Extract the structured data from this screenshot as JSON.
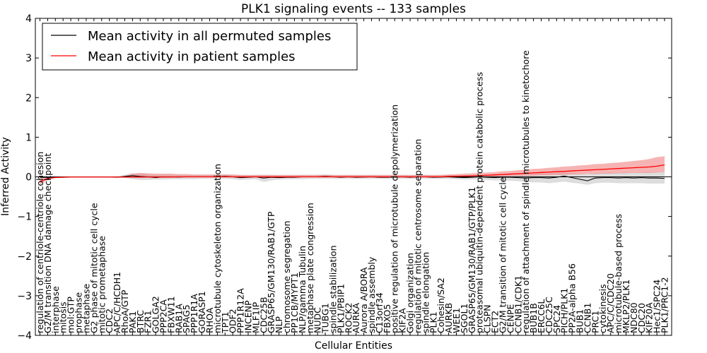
{
  "chart_data": {
    "type": "line",
    "title": "PLK1 signaling events -- 133 samples",
    "xlabel": "Cellular Entities",
    "ylabel": "Inferred Activity",
    "ylim": [
      -4,
      4
    ],
    "yticks": [
      4,
      3,
      2,
      1,
      0,
      -1,
      -2,
      -3,
      -4
    ],
    "ytick_labels": [
      "4",
      "3",
      "2",
      "1",
      "0",
      "−1",
      "−2",
      "−3",
      "−4"
    ],
    "legend_position": "upper-left",
    "categories": [
      "regulation of centriole-centriole cohesion",
      "G2/M transition DNA damage checkpoint",
      "interphase",
      "mitosis",
      "mol:GTP",
      "prophase",
      "metaphase",
      "G2 phase of mitotic cell cycle",
      "mitotic prometaphase",
      "CDC2",
      "APC/C/HCDH1",
      "RhoA/GTP",
      "PAK1",
      "BTRC",
      "FZR1",
      "GOLGA2",
      "PPP2CA",
      "FBXW11",
      "RAB1A",
      "SPAG5",
      "PPP1R1A",
      "GORASP1",
      "RHOA",
      "microtubule cytoskeleton organization",
      "TPT1",
      "ODF2",
      "PPP1R12A",
      "INCENP",
      "MLF1IP",
      "CDC25B",
      "GRASP65/GM130/RAB1/GTP",
      "NLP",
      "chromosome segregation",
      "PP1CB/MYPT1",
      "NLP/gamma Tubulin",
      "metaphase plate congression",
      "NUDC",
      "TUBG1",
      "spindle stabilization",
      "PLK1/PBIP1",
      "ROCK2",
      "AURKA",
      "Aurora A/BORA",
      "spindle assembly",
      "C13orf34",
      "FBXO5",
      "positive regulation of microtubule depolymerization",
      "KIF2A",
      "Golgi organization",
      "regulation of mitotic centrosome separation",
      "spindle elongation",
      "PLK1",
      "Cohesin/SA2",
      "AURKB",
      "WEE1",
      "SGOL1",
      "GRASP65/GM130/RAB1/GTP/PLK1",
      "proteasomal ubiquitin-dependent protein catabolic process",
      "CLSPN",
      "ECT2",
      "G2/M transition of mitotic cell cycle",
      "CENPE",
      "CCNB1/CDK1",
      "regulation of attachment of spindle microtubules to kinetochore",
      "BUB1B",
      "ERCC6L",
      "CDC25C",
      "SPC24",
      "PICH/PLK1",
      "PP2A-alpha B56",
      "BUB1",
      "CCNB1",
      "PRC1",
      "cytokinesis",
      "APC/C/CDC20",
      "microtubule-based process",
      "MKLP2/PLK1",
      "NDC80",
      "CDC20",
      "KIF20A",
      "Hec1/SPC24",
      "PLK1/PRC1-2"
    ],
    "series": [
      {
        "name": "Mean activity in all permuted samples",
        "color": "#000000",
        "band_color": "#b4b4b4",
        "values": [
          -0.015,
          -0.01,
          -0.005,
          -0.002,
          0.0,
          0.0,
          0.0,
          0.0,
          0.0,
          0.0,
          -0.01,
          0.01,
          0.03,
          0.01,
          0.0,
          -0.02,
          0.0,
          0.0,
          -0.005,
          0.0,
          0.0,
          0.0,
          0.0,
          0.0,
          0.01,
          0.0,
          -0.02,
          -0.01,
          0.0,
          -0.03,
          -0.01,
          -0.02,
          -0.01,
          -0.01,
          0.0,
          0.0,
          0.0,
          0.01,
          0.0,
          -0.01,
          0.0,
          -0.01,
          -0.005,
          0.0,
          -0.01,
          -0.01,
          -0.005,
          0.0,
          -0.01,
          0.0,
          0.0,
          -0.01,
          -0.005,
          0.0,
          -0.01,
          -0.02,
          -0.01,
          0.0,
          -0.01,
          -0.02,
          -0.005,
          -0.01,
          -0.02,
          -0.03,
          -0.02,
          -0.02,
          -0.03,
          -0.01,
          0.02,
          -0.02,
          -0.06,
          -0.1,
          -0.03,
          -0.02,
          -0.02,
          -0.03,
          -0.02,
          -0.03,
          -0.02,
          -0.03,
          -0.03,
          -0.04
        ],
        "lower": [
          -0.03,
          -0.02,
          -0.01,
          -0.005,
          -0.005,
          -0.005,
          -0.005,
          -0.005,
          -0.005,
          -0.005,
          -0.02,
          -0.03,
          -0.06,
          -0.08,
          -0.08,
          -0.07,
          -0.07,
          -0.06,
          -0.06,
          -0.06,
          -0.06,
          -0.05,
          -0.05,
          -0.05,
          -0.05,
          -0.06,
          -0.08,
          -0.07,
          -0.06,
          -0.13,
          -0.09,
          -0.07,
          -0.06,
          -0.06,
          -0.06,
          -0.05,
          -0.05,
          -0.05,
          -0.05,
          -0.05,
          -0.05,
          -0.05,
          -0.05,
          -0.05,
          -0.05,
          -0.05,
          -0.05,
          -0.05,
          -0.05,
          -0.05,
          -0.05,
          -0.05,
          -0.05,
          -0.05,
          -0.06,
          -0.07,
          -0.07,
          -0.07,
          -0.08,
          -0.09,
          -0.09,
          -0.1,
          -0.11,
          -0.13,
          -0.14,
          -0.14,
          -0.16,
          -0.14,
          -0.12,
          -0.15,
          -0.17,
          -0.2,
          -0.16,
          -0.15,
          -0.15,
          -0.16,
          -0.16,
          -0.16,
          -0.16,
          -0.17,
          -0.17,
          -0.17
        ],
        "upper": [
          0.0,
          0.0,
          0.0,
          0.0,
          0.005,
          0.005,
          0.005,
          0.005,
          0.005,
          0.005,
          0.01,
          0.05,
          0.09,
          0.08,
          0.07,
          0.05,
          0.06,
          0.06,
          0.05,
          0.05,
          0.05,
          0.05,
          0.05,
          0.05,
          0.06,
          0.05,
          0.04,
          0.04,
          0.05,
          0.05,
          0.05,
          0.04,
          0.04,
          0.04,
          0.05,
          0.05,
          0.05,
          0.06,
          0.05,
          0.04,
          0.05,
          0.04,
          0.04,
          0.05,
          0.04,
          0.04,
          0.04,
          0.05,
          0.04,
          0.05,
          0.05,
          0.04,
          0.05,
          0.05,
          0.04,
          0.03,
          0.04,
          0.05,
          0.05,
          0.05,
          0.07,
          0.07,
          0.07,
          0.07,
          0.08,
          0.09,
          0.09,
          0.1,
          0.13,
          0.1,
          0.08,
          0.06,
          0.09,
          0.1,
          0.11,
          0.1,
          0.11,
          0.11,
          0.12,
          0.12,
          0.12,
          0.12
        ]
      },
      {
        "name": "Mean activity in patient samples",
        "color": "#ff0000",
        "band_color": "#f08080",
        "values": [
          -0.12,
          -0.04,
          -0.015,
          -0.01,
          -0.005,
          -0.005,
          -0.005,
          -0.005,
          -0.005,
          -0.005,
          -0.005,
          -0.005,
          -0.005,
          -0.005,
          -0.005,
          -0.005,
          -0.005,
          -0.005,
          0.0,
          0.0,
          0.0,
          0.0,
          0.0,
          0.0,
          0.0,
          0.0,
          0.0,
          0.0,
          0.0,
          0.0,
          0.0,
          0.0,
          0.0,
          0.0,
          0.0,
          0.0,
          0.0,
          0.0,
          0.0,
          0.0,
          0.0,
          0.0,
          0.0,
          0.0,
          0.0,
          0.0,
          0.0,
          0.0,
          0.0,
          0.0,
          0.0,
          0.0,
          0.0,
          0.01,
          0.015,
          0.02,
          0.025,
          0.03,
          0.04,
          0.05,
          0.06,
          0.07,
          0.08,
          0.09,
          0.1,
          0.11,
          0.12,
          0.13,
          0.14,
          0.15,
          0.16,
          0.17,
          0.18,
          0.19,
          0.2,
          0.21,
          0.22,
          0.23,
          0.24,
          0.25,
          0.27,
          0.3
        ],
        "lower": [
          -0.2,
          -0.08,
          -0.03,
          -0.02,
          -0.01,
          -0.01,
          -0.01,
          -0.01,
          -0.01,
          -0.01,
          -0.01,
          -0.02,
          -0.02,
          -0.03,
          -0.02,
          -0.02,
          -0.02,
          -0.02,
          -0.01,
          -0.01,
          -0.01,
          -0.01,
          -0.01,
          -0.01,
          -0.01,
          -0.01,
          -0.01,
          -0.01,
          -0.01,
          -0.01,
          -0.01,
          -0.01,
          -0.01,
          -0.01,
          -0.01,
          -0.01,
          -0.01,
          -0.01,
          -0.01,
          -0.01,
          -0.01,
          -0.01,
          -0.01,
          -0.01,
          -0.01,
          -0.01,
          -0.01,
          -0.01,
          -0.01,
          -0.01,
          -0.01,
          -0.01,
          -0.01,
          -0.01,
          -0.01,
          -0.01,
          -0.01,
          -0.005,
          0.0,
          0.005,
          0.01,
          0.02,
          0.02,
          0.03,
          0.03,
          0.04,
          0.04,
          0.05,
          0.05,
          0.06,
          0.06,
          0.07,
          0.07,
          0.08,
          0.08,
          0.09,
          0.09,
          0.1,
          0.1,
          0.1,
          0.11,
          0.12
        ],
        "upper": [
          -0.04,
          0.0,
          0.0,
          0.0,
          0.0,
          0.0,
          0.0,
          0.0,
          0.0,
          0.0,
          0.0,
          0.03,
          0.08,
          0.1,
          0.09,
          0.08,
          0.08,
          0.08,
          0.07,
          0.07,
          0.06,
          0.06,
          0.06,
          0.06,
          0.06,
          0.06,
          0.05,
          0.05,
          0.05,
          0.05,
          0.05,
          0.05,
          0.05,
          0.05,
          0.05,
          0.05,
          0.05,
          0.05,
          0.05,
          0.05,
          0.05,
          0.05,
          0.05,
          0.05,
          0.05,
          0.05,
          0.05,
          0.05,
          0.05,
          0.05,
          0.05,
          0.05,
          0.05,
          0.06,
          0.07,
          0.08,
          0.09,
          0.1,
          0.11,
          0.12,
          0.14,
          0.15,
          0.17,
          0.18,
          0.2,
          0.21,
          0.23,
          0.24,
          0.26,
          0.27,
          0.29,
          0.3,
          0.32,
          0.33,
          0.35,
          0.36,
          0.38,
          0.4,
          0.42,
          0.45,
          0.5,
          0.52
        ]
      }
    ]
  }
}
